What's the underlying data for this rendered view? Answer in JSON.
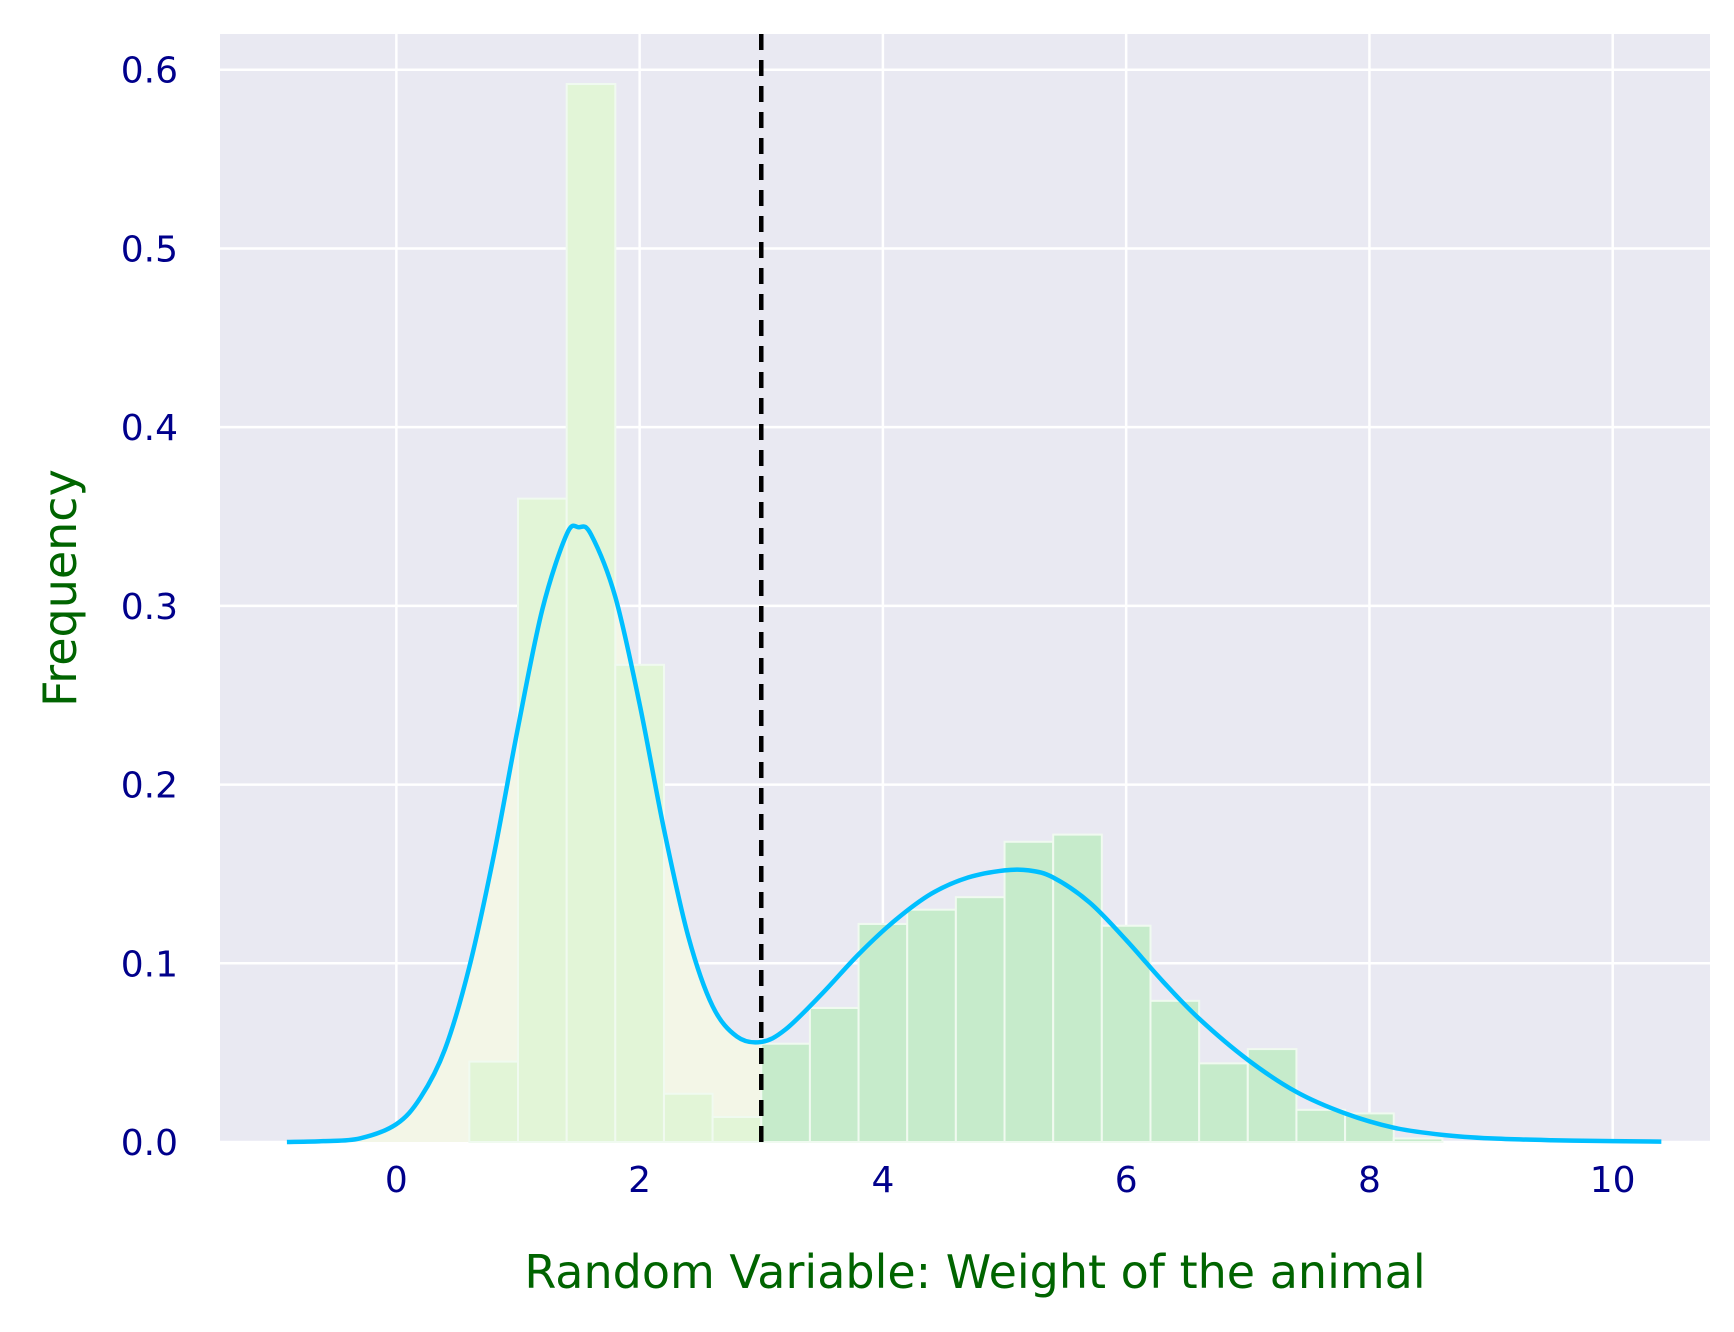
{
  "chart_data": {
    "type": "bar",
    "subtype": "histogram-with-kde",
    "title": "",
    "xlabel": "Random Variable: Weight of the animal",
    "ylabel": "Frequency",
    "xlim": [
      -1.45,
      10.8
    ],
    "ylim": [
      0,
      0.62
    ],
    "xticks": [
      0,
      2,
      4,
      6,
      8,
      10
    ],
    "yticks": [
      0.0,
      0.1,
      0.2,
      0.3,
      0.4,
      0.5,
      0.6
    ],
    "xtick_labels": [
      "0",
      "2",
      "4",
      "6",
      "8",
      "10"
    ],
    "ytick_labels": [
      "0.0",
      "0.1",
      "0.2",
      "0.3",
      "0.4",
      "0.5",
      "0.6"
    ],
    "grid": true,
    "bin_width": 0.4,
    "bins": [
      {
        "x0": 0.6,
        "x1": 1.0,
        "value": 0.045
      },
      {
        "x0": 1.0,
        "x1": 1.4,
        "value": 0.36
      },
      {
        "x0": 1.4,
        "x1": 1.8,
        "value": 0.592
      },
      {
        "x0": 1.8,
        "x1": 2.2,
        "value": 0.267
      },
      {
        "x0": 2.2,
        "x1": 2.6,
        "value": 0.027
      },
      {
        "x0": 2.6,
        "x1": 3.0,
        "value": 0.014
      },
      {
        "x0": 3.0,
        "x1": 3.4,
        "value": 0.055
      },
      {
        "x0": 3.4,
        "x1": 3.8,
        "value": 0.075
      },
      {
        "x0": 3.8,
        "x1": 4.2,
        "value": 0.122
      },
      {
        "x0": 4.2,
        "x1": 4.6,
        "value": 0.13
      },
      {
        "x0": 4.6,
        "x1": 5.0,
        "value": 0.137
      },
      {
        "x0": 5.0,
        "x1": 5.4,
        "value": 0.168
      },
      {
        "x0": 5.4,
        "x1": 5.8,
        "value": 0.172
      },
      {
        "x0": 5.8,
        "x1": 6.2,
        "value": 0.121
      },
      {
        "x0": 6.2,
        "x1": 6.6,
        "value": 0.079
      },
      {
        "x0": 6.6,
        "x1": 7.0,
        "value": 0.044
      },
      {
        "x0": 7.0,
        "x1": 7.4,
        "value": 0.052
      },
      {
        "x0": 7.4,
        "x1": 7.8,
        "value": 0.018
      },
      {
        "x0": 7.8,
        "x1": 8.2,
        "value": 0.016
      },
      {
        "x0": 8.2,
        "x1": 8.6,
        "value": 0.002
      }
    ],
    "kde": {
      "x": [
        -0.9,
        -0.6,
        -0.3,
        0.0,
        0.2,
        0.4,
        0.6,
        0.8,
        1.0,
        1.2,
        1.4,
        1.5,
        1.6,
        1.8,
        2.0,
        2.2,
        2.4,
        2.6,
        2.8,
        3.0,
        3.2,
        3.5,
        3.8,
        4.1,
        4.4,
        4.7,
        5.0,
        5.2,
        5.4,
        5.7,
        6.0,
        6.3,
        6.6,
        7.0,
        7.4,
        7.8,
        8.2,
        8.6,
        9.0,
        9.5,
        10.0,
        10.4
      ],
      "y": [
        0.0,
        0.0005,
        0.002,
        0.01,
        0.025,
        0.052,
        0.098,
        0.16,
        0.232,
        0.298,
        0.34,
        0.344,
        0.34,
        0.305,
        0.245,
        0.175,
        0.115,
        0.076,
        0.059,
        0.056,
        0.063,
        0.083,
        0.105,
        0.124,
        0.139,
        0.148,
        0.152,
        0.152,
        0.148,
        0.134,
        0.113,
        0.09,
        0.069,
        0.046,
        0.028,
        0.016,
        0.008,
        0.004,
        0.002,
        0.001,
        0.0005,
        0.0002
      ]
    },
    "threshold_line": {
      "x": 3.0,
      "style": "dashed"
    },
    "left_region_range": [
      -1.0,
      3.0
    ],
    "colors": {
      "background": "#e9e9f2",
      "grid": "#ffffff",
      "bar_fill": "#c6ebcb",
      "left_region_fill": "#f3f6e7",
      "bar_overlap_fill": "#e2f5d7",
      "bar_edge": "#f0faf0",
      "kde_line": "#00bfff",
      "threshold_line": "#000000",
      "tick_label": "#00008b",
      "axis_label": "#006400"
    }
  }
}
